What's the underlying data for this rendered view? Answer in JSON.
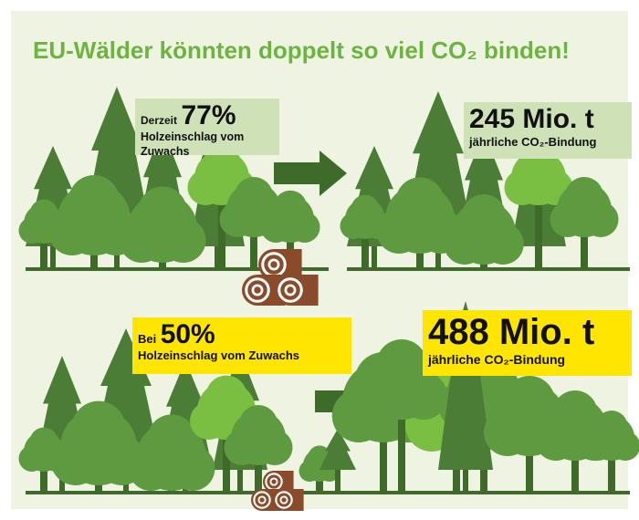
{
  "title": "EU-Wälder könnten doppelt so viel CO₂ binden!",
  "scenarios": [
    {
      "prefix": "Derzeit",
      "percent": "77%",
      "label": "Holzeinschlag vom Zuwachs",
      "result": "245 Mio. t",
      "result_label": "jährliche CO₂-Bindung"
    },
    {
      "prefix": "Bei",
      "percent": "50%",
      "label": "Holzeinschlag vom Zuwachs",
      "result": "488 Mio. t",
      "result_label": "jährliche CO₂-Bindung"
    }
  ]
}
